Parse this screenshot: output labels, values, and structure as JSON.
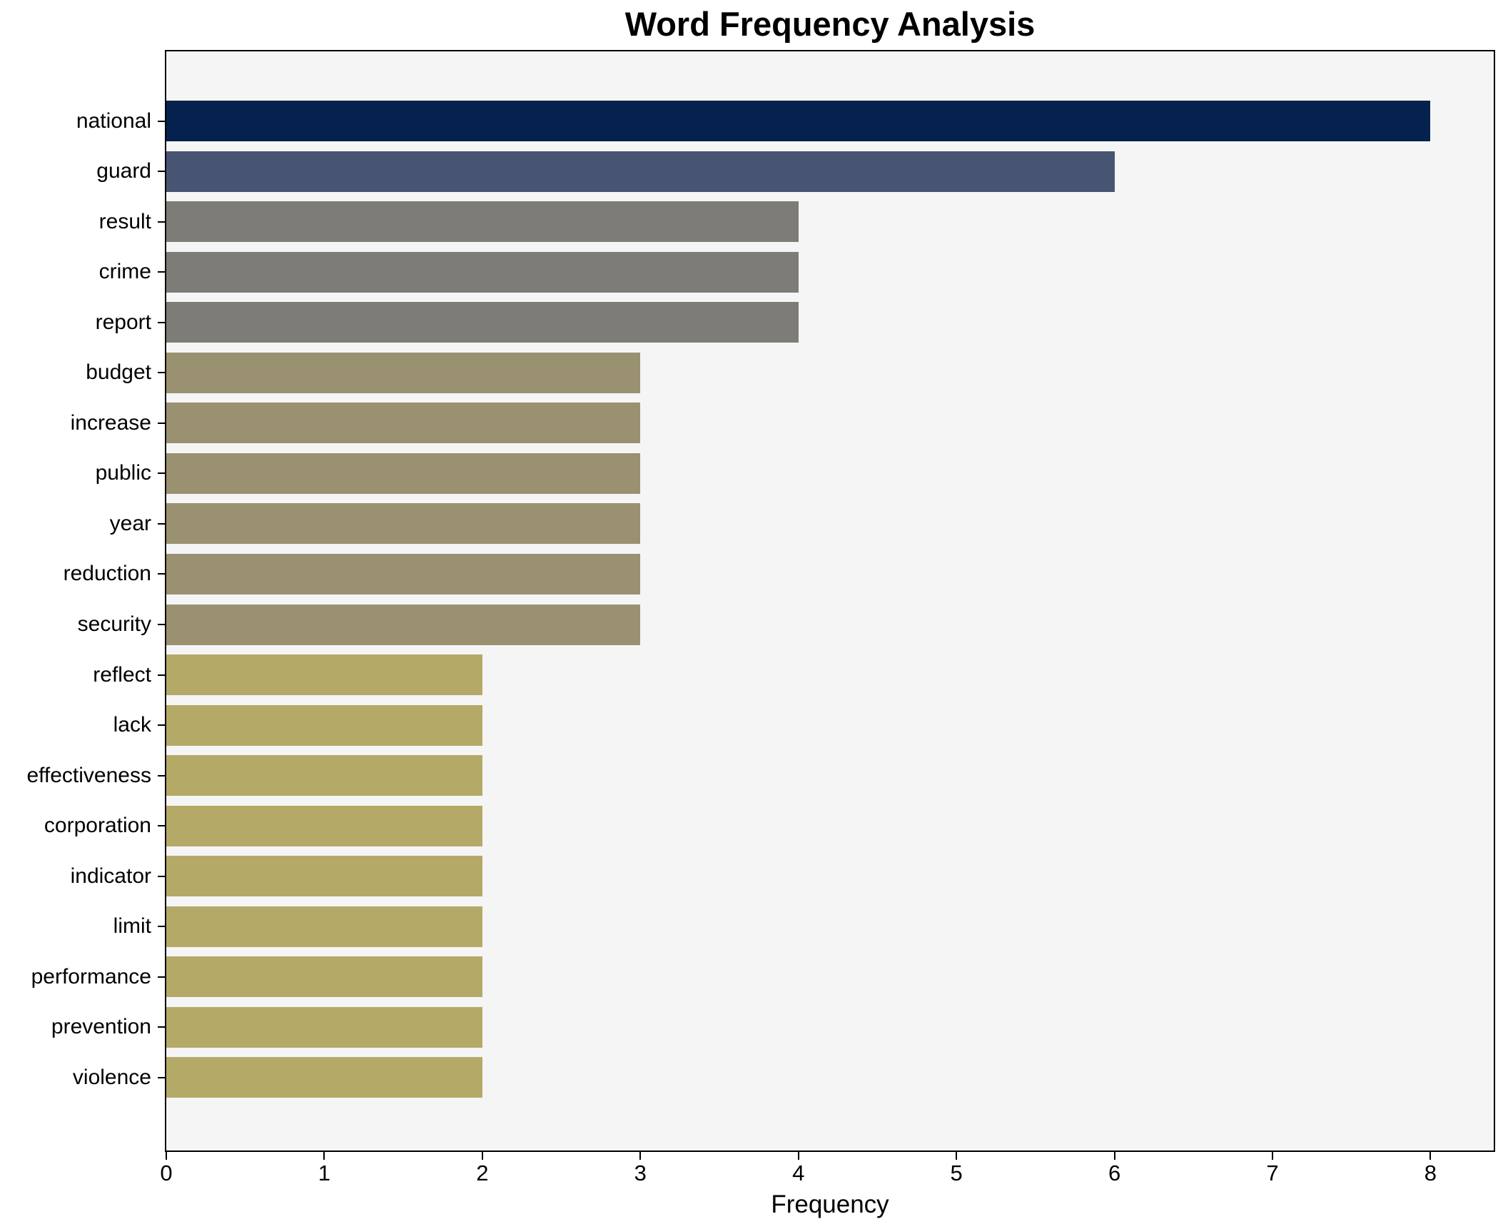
{
  "chart_data": {
    "type": "bar",
    "orientation": "horizontal",
    "title": "Word Frequency Analysis",
    "xlabel": "Frequency",
    "ylabel": "",
    "grid": false,
    "legend_position": "none",
    "xlim": [
      0,
      8.4
    ],
    "xticks": [
      0,
      1,
      2,
      3,
      4,
      5,
      6,
      7,
      8
    ],
    "plot_background": "#f5f5f6",
    "figure_background": "#ffffff",
    "spine_color": "#000000",
    "categories": [
      "national",
      "guard",
      "result",
      "crime",
      "report",
      "budget",
      "increase",
      "public",
      "year",
      "reduction",
      "security",
      "reflect",
      "lack",
      "effectiveness",
      "corporation",
      "indicator",
      "limit",
      "performance",
      "prevention",
      "violence"
    ],
    "values": [
      8,
      6,
      4,
      4,
      4,
      3,
      3,
      3,
      3,
      3,
      3,
      2,
      2,
      2,
      2,
      2,
      2,
      2,
      2,
      2
    ],
    "bar_colors": [
      "#05224e",
      "#485572",
      "#7d7c76",
      "#7d7c76",
      "#7d7c76",
      "#9a9170",
      "#9a9170",
      "#9a9170",
      "#9a9170",
      "#9a9170",
      "#9a9170",
      "#b5a968",
      "#b5a968",
      "#b5a968",
      "#b5a968",
      "#b5a968",
      "#b5a968",
      "#b5a968",
      "#b5a968",
      "#b5a968"
    ]
  }
}
